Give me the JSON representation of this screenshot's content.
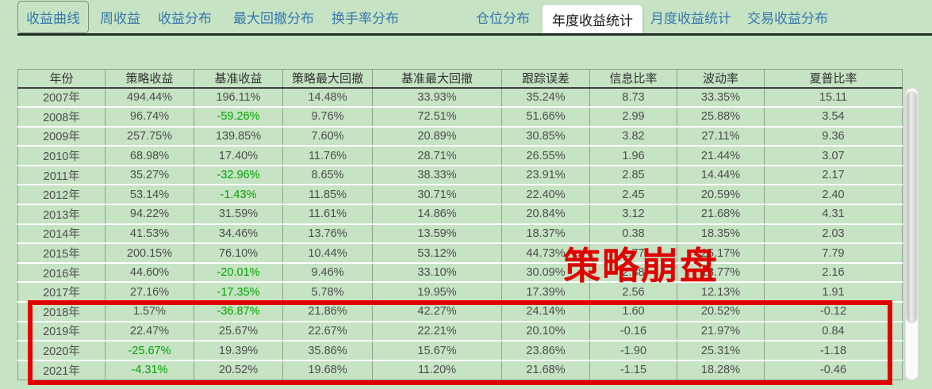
{
  "tabs": [
    {
      "label": "收益曲线"
    },
    {
      "label": "周收益"
    },
    {
      "label": "收益分布"
    },
    {
      "label": "最大回撤分布"
    },
    {
      "label": "换手率分布"
    },
    {
      "label": "仓位分布"
    },
    {
      "label": "年度收益统计",
      "active": true
    },
    {
      "label": "月度收益统计"
    },
    {
      "label": "交易收益分布"
    }
  ],
  "table": {
    "headers": [
      "年份",
      "策略收益",
      "基准收益",
      "策略最大回撤",
      "基准最大回撤",
      "跟踪误差",
      "信息比率",
      "波动率",
      "夏普比率"
    ],
    "rows": [
      [
        "2007年",
        "494.44%",
        "196.11%",
        "14.48%",
        "33.93%",
        "35.24%",
        "8.73",
        "33.35%",
        "15.11"
      ],
      [
        "2008年",
        "96.74%",
        "-59.26%",
        "9.76%",
        "72.51%",
        "51.66%",
        "2.99",
        "25.88%",
        "3.54"
      ],
      [
        "2009年",
        "257.75%",
        "139.85%",
        "7.60%",
        "20.89%",
        "30.85%",
        "3.82",
        "27.11%",
        "9.36"
      ],
      [
        "2010年",
        "68.98%",
        "17.40%",
        "11.76%",
        "28.71%",
        "26.55%",
        "1.96",
        "21.44%",
        "3.07"
      ],
      [
        "2011年",
        "35.27%",
        "-32.96%",
        "8.65%",
        "38.33%",
        "23.91%",
        "2.85",
        "14.44%",
        "2.17"
      ],
      [
        "2012年",
        "53.14%",
        "-1.43%",
        "11.85%",
        "30.71%",
        "22.40%",
        "2.45",
        "20.59%",
        "2.40"
      ],
      [
        "2013年",
        "94.22%",
        "31.59%",
        "11.61%",
        "14.86%",
        "20.84%",
        "3.12",
        "21.68%",
        "4.31"
      ],
      [
        "2014年",
        "41.53%",
        "34.46%",
        "13.76%",
        "13.59%",
        "18.37%",
        "0.38",
        "18.35%",
        "2.03"
      ],
      [
        "2015年",
        "200.15%",
        "76.10%",
        "10.44%",
        "53.12%",
        "44.73%",
        "2.77",
        "25.17%",
        "7.79"
      ],
      [
        "2016年",
        "44.60%",
        "-20.01%",
        "9.46%",
        "33.10%",
        "30.09%",
        "2.38",
        "18.77%",
        "2.16"
      ],
      [
        "2017年",
        "27.16%",
        "-17.35%",
        "5.78%",
        "19.95%",
        "17.39%",
        "2.56",
        "12.13%",
        "1.91"
      ],
      [
        "2018年",
        "1.57%",
        "-36.87%",
        "21.86%",
        "42.27%",
        "24.14%",
        "1.60",
        "20.52%",
        "-0.12"
      ],
      [
        "2019年",
        "22.47%",
        "25.67%",
        "22.67%",
        "22.21%",
        "20.10%",
        "-0.16",
        "21.97%",
        "0.84"
      ],
      [
        "2020年",
        "-25.67%",
        "19.39%",
        "35.86%",
        "15.67%",
        "23.86%",
        "-1.90",
        "25.31%",
        "-1.18"
      ],
      [
        "2021年",
        "-4.31%",
        "20.52%",
        "19.68%",
        "11.20%",
        "21.68%",
        "-1.15",
        "18.28%",
        "-0.46"
      ]
    ]
  },
  "annotation": {
    "text": "策略崩盘"
  },
  "colors": {
    "background": "#c6e3c4",
    "tab_text": "#3878ae",
    "active_tab_bg": "#ffffff",
    "negative_return": "#00a400",
    "annotation_red": "#e00000"
  }
}
